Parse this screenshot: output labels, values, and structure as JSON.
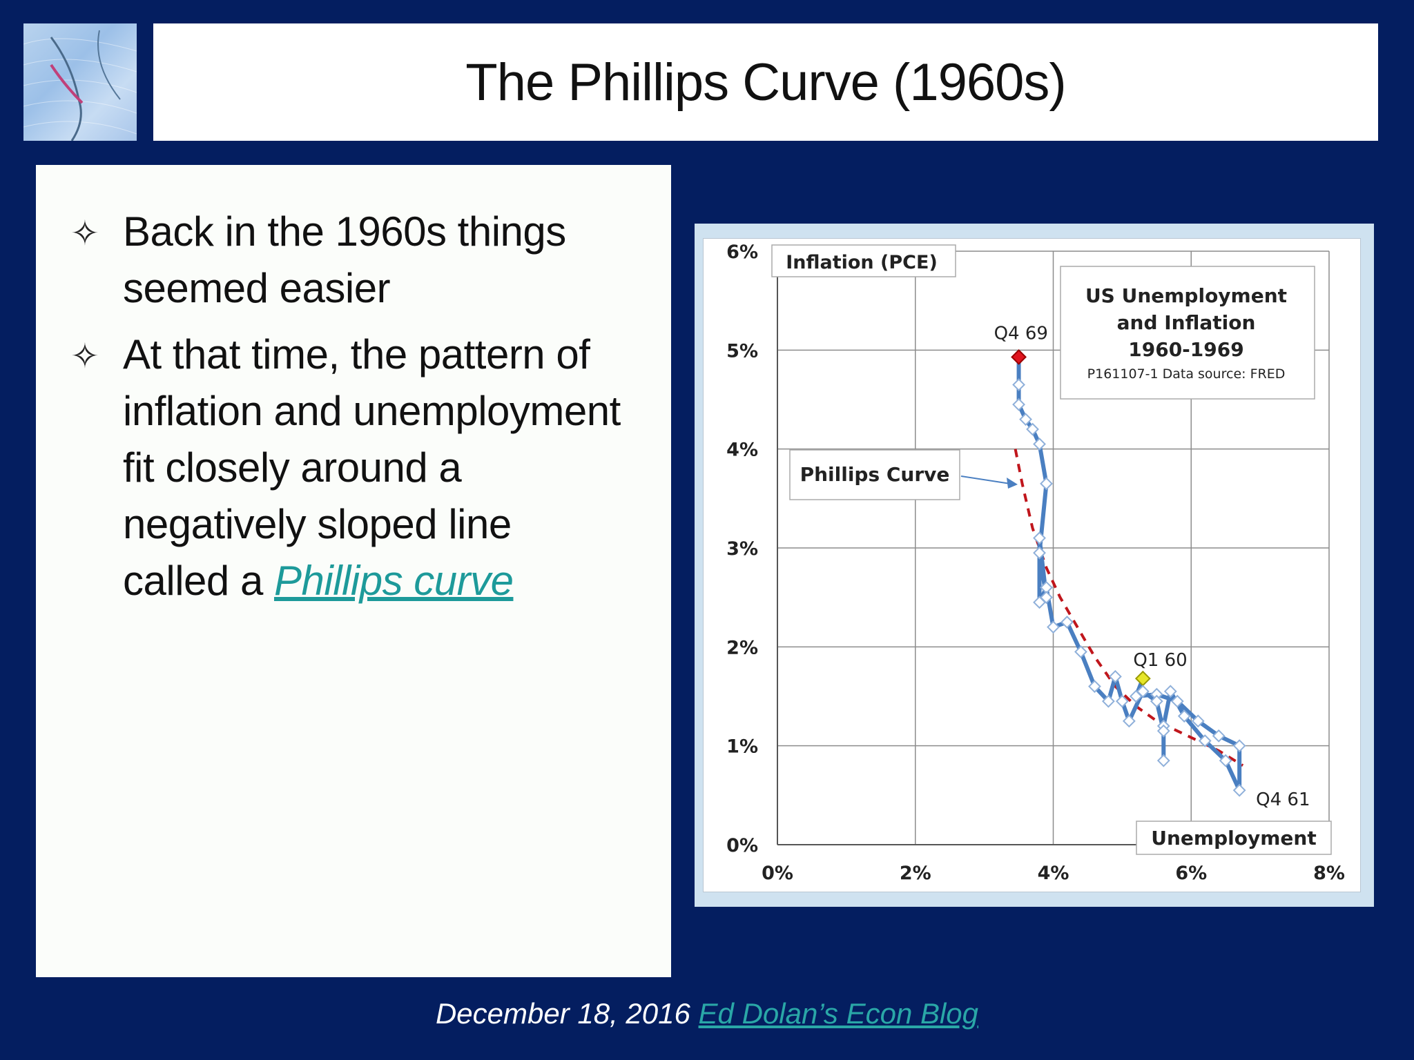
{
  "slide": {
    "title": "The Phillips Curve (1960s)",
    "bullets": [
      {
        "text": "Back in the 1960s things seemed easier"
      },
      {
        "text_before_link": "At that time, the pattern of inflation and unemployment fit closely around a negatively sloped line called a ",
        "link_text": "Phillips curve"
      }
    ],
    "footer_date": "December 18, 2016",
    "footer_link": "Ed Dolan’s Econ Blog"
  },
  "colors": {
    "background": "#041e60",
    "series": "#4a7fc1",
    "trend": "#c0161c",
    "start_marker": "#e6e62a",
    "end_marker": "#e0141e",
    "link": "#1d9a9a"
  },
  "chart_data": {
    "type": "line",
    "box_title": [
      "US Unemployment",
      "and Inflation",
      "1960-1969"
    ],
    "source_note": "P161107-1 Data source: FRED",
    "xlabel": "Unemployment",
    "ylabel": "Inflation (PCE)",
    "xlim": [
      0,
      8
    ],
    "ylim": [
      0,
      6
    ],
    "xticks": [
      "0%",
      "2%",
      "4%",
      "6%",
      "8%"
    ],
    "yticks": [
      "0%",
      "1%",
      "2%",
      "3%",
      "4%",
      "5%",
      "6%"
    ],
    "grid": true,
    "callout": "Phillips Curve",
    "annotations": [
      {
        "text": "Q4 69",
        "x": 3.5,
        "y": 4.93
      },
      {
        "text": "Q1 60",
        "x": 5.3,
        "y": 1.68
      },
      {
        "text": "Q4 61",
        "x": 6.7,
        "y": 0.55
      }
    ],
    "series": [
      {
        "points": [
          [
            5.3,
            1.68
          ],
          [
            5.2,
            1.5
          ],
          [
            5.5,
            1.52
          ],
          [
            5.8,
            1.45
          ],
          [
            6.1,
            1.25
          ],
          [
            6.4,
            1.1
          ],
          [
            6.7,
            1.0
          ],
          [
            6.7,
            0.55
          ],
          [
            6.5,
            0.85
          ],
          [
            6.2,
            1.05
          ],
          [
            5.9,
            1.3
          ],
          [
            5.7,
            1.55
          ],
          [
            5.6,
            1.2
          ],
          [
            5.6,
            0.85
          ],
          [
            5.6,
            1.15
          ],
          [
            5.5,
            1.45
          ],
          [
            5.3,
            1.55
          ],
          [
            5.1,
            1.25
          ],
          [
            5.0,
            1.45
          ],
          [
            4.9,
            1.7
          ],
          [
            4.8,
            1.45
          ],
          [
            4.6,
            1.6
          ],
          [
            4.4,
            1.95
          ],
          [
            4.2,
            2.25
          ],
          [
            4.0,
            2.2
          ],
          [
            3.9,
            2.6
          ],
          [
            3.8,
            2.45
          ],
          [
            3.8,
            3.1
          ],
          [
            3.9,
            2.5
          ],
          [
            3.8,
            2.95
          ],
          [
            3.9,
            3.65
          ],
          [
            3.8,
            4.05
          ],
          [
            3.7,
            4.2
          ],
          [
            3.6,
            4.3
          ],
          [
            3.5,
            4.45
          ],
          [
            3.5,
            4.65
          ],
          [
            3.5,
            4.93
          ]
        ]
      },
      {
        "name": "Phillips Curve",
        "style": "dashed",
        "points": [
          [
            3.45,
            4.0
          ],
          [
            3.55,
            3.65
          ],
          [
            3.7,
            3.2
          ],
          [
            3.9,
            2.8
          ],
          [
            4.1,
            2.5
          ],
          [
            4.35,
            2.2
          ],
          [
            4.6,
            1.9
          ],
          [
            4.9,
            1.6
          ],
          [
            5.2,
            1.4
          ],
          [
            5.5,
            1.25
          ],
          [
            5.8,
            1.15
          ],
          [
            6.1,
            1.05
          ],
          [
            6.4,
            0.95
          ],
          [
            6.75,
            0.8
          ]
        ]
      }
    ]
  }
}
